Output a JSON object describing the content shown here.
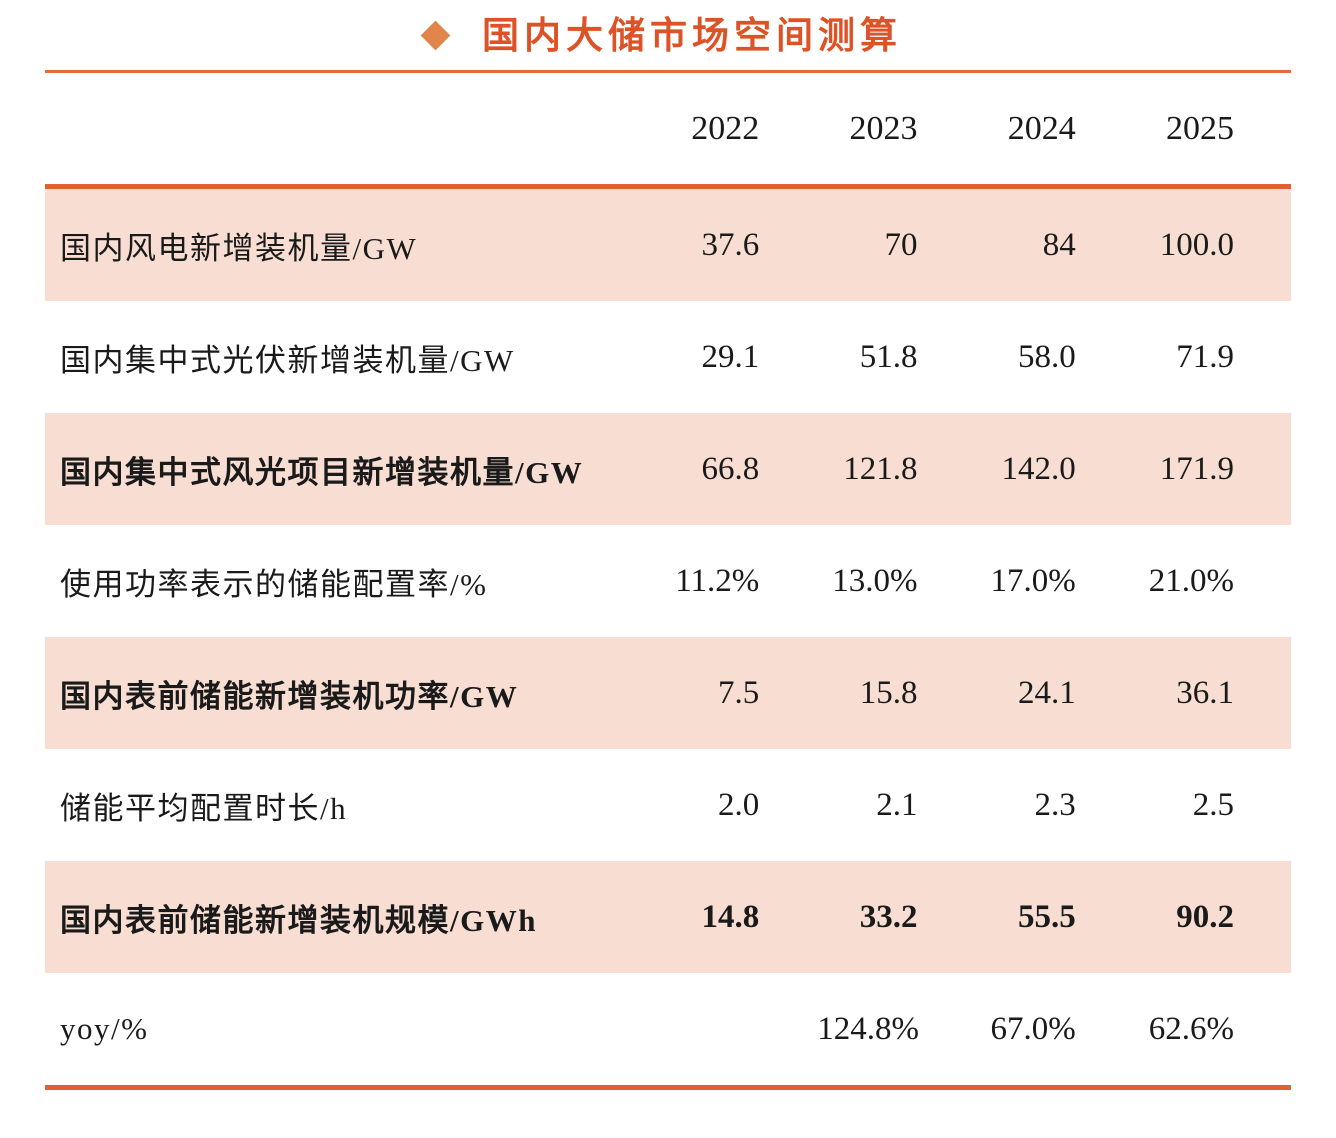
{
  "title": {
    "bullet_icon": "diamond",
    "text": "国内大储市场空间测算"
  },
  "colors": {
    "title_orange": "#DD5327",
    "diamond_orange": "#E1854B",
    "rule_orange": "#E4693B",
    "thick_rule_orange": "#E0612F",
    "row_shade_peach": "#F8DED2",
    "text_black": "#1A1A1A"
  },
  "table": {
    "year_headers": [
      "2022",
      "2023",
      "2024",
      "2025"
    ],
    "rows": [
      {
        "label": "国内风电新增装机量/GW",
        "values": [
          "37.6",
          "70",
          "84",
          "100.0"
        ]
      },
      {
        "label": "国内集中式光伏新增装机量/GW",
        "values": [
          "29.1",
          "51.8",
          "58.0",
          "71.9"
        ]
      },
      {
        "label": "国内集中式风光项目新增装机量/GW",
        "values": [
          "66.8",
          "121.8",
          "142.0",
          "171.9"
        ]
      },
      {
        "label": "使用功率表示的储能配置率/%",
        "values": [
          "11.2%",
          "13.0%",
          "17.0%",
          "21.0%"
        ]
      },
      {
        "label": "国内表前储能新增装机功率/GW",
        "values": [
          "7.5",
          "15.8",
          "24.1",
          "36.1"
        ]
      },
      {
        "label": "储能平均配置时长/h",
        "values": [
          "2.0",
          "2.1",
          "2.3",
          "2.5"
        ]
      },
      {
        "label": "国内表前储能新增装机规模/GWh",
        "values": [
          "14.8",
          "33.2",
          "55.5",
          "90.2"
        ]
      },
      {
        "label": "yoy/%",
        "values": [
          "",
          "124.8%",
          "67.0%",
          "62.6%"
        ]
      }
    ]
  }
}
